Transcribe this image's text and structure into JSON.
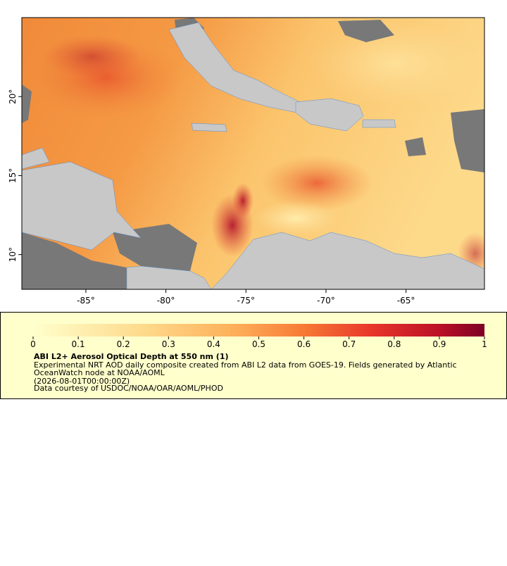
{
  "map": {
    "xlim": [
      -89,
      -60.1
    ],
    "ylim": [
      7.8,
      25
    ],
    "xticks": [
      {
        "value": -85,
        "label": "-85°"
      },
      {
        "value": -80,
        "label": "-80°"
      },
      {
        "value": -75,
        "label": "-75°"
      },
      {
        "value": -70,
        "label": "-70°"
      },
      {
        "value": -65,
        "label": "-65°"
      }
    ],
    "yticks": [
      {
        "value": 10,
        "label": "10°"
      },
      {
        "value": 15,
        "label": "15°"
      },
      {
        "value": 20,
        "label": "20°"
      }
    ]
  },
  "legend": {
    "range": [
      0,
      1
    ],
    "ticks": [
      0,
      0.1,
      0.2,
      0.3,
      0.4,
      0.5,
      0.6,
      0.7,
      0.8,
      0.9,
      1
    ],
    "title": "ABI L2+ Aerosol Optical Depth at 550 nm (1)",
    "lines": [
      "Experimental NRT AOD daily composite created from ABI L2 data from GOES-19. Fields generated by Atlantic",
      "OceanWatch node at NOAA/AOML",
      "(2026-08-01T00:00:00Z)",
      "Data courtesy of USDOC/NOAA/OAR/AOML/PHOD"
    ]
  }
}
